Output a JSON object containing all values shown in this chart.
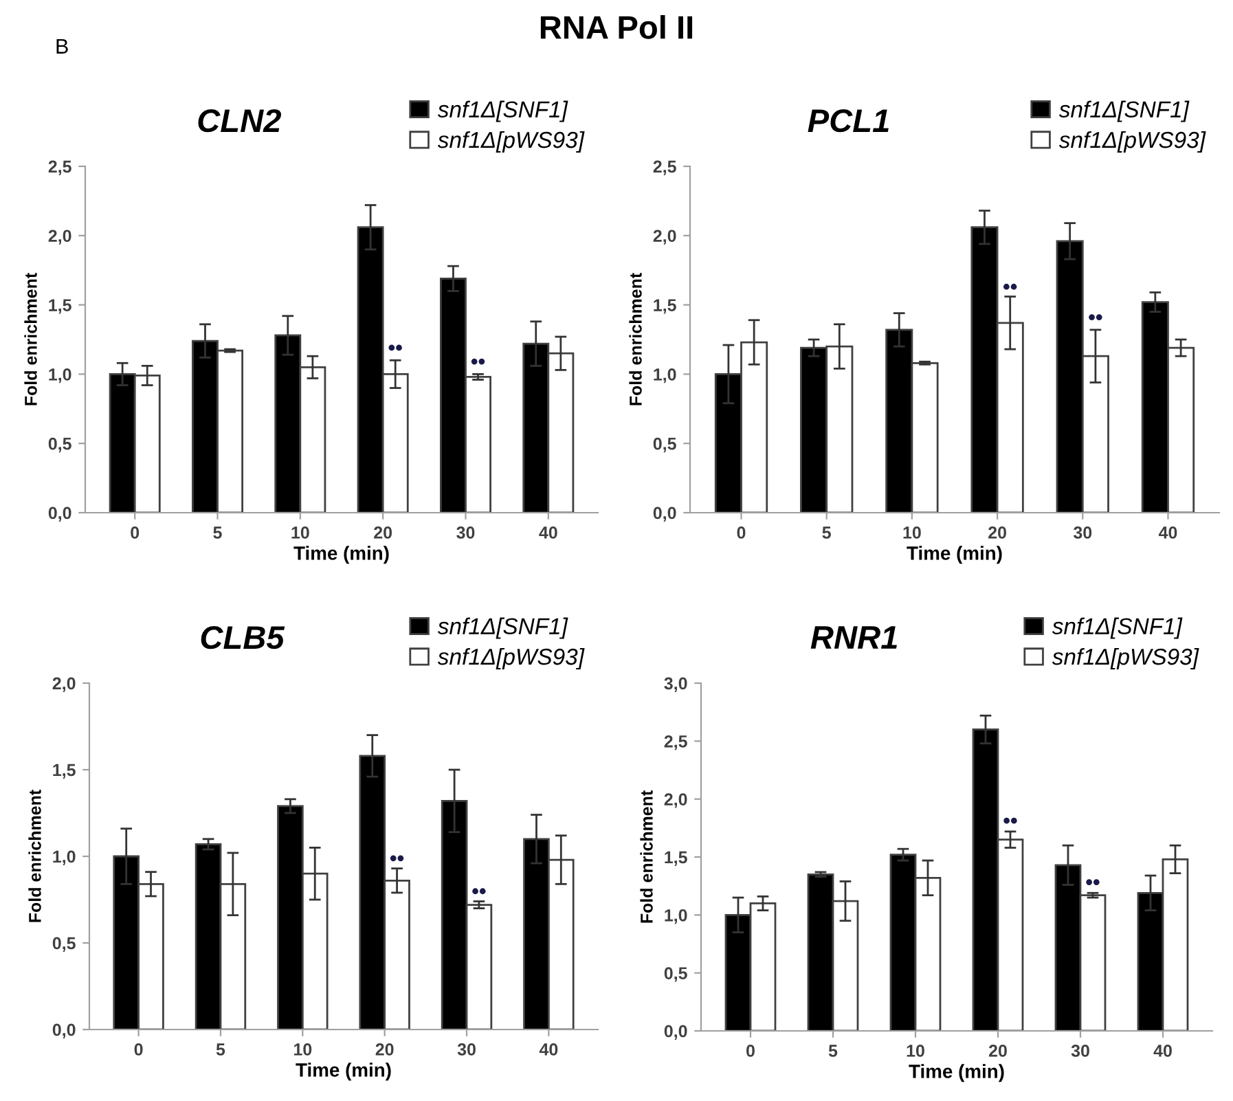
{
  "chart_data": [
    {
      "type": "bar",
      "title": "CLN2",
      "xlabel": "Time (min)",
      "ylabel": "Fold enrichment",
      "categories": [
        "0",
        "5",
        "10",
        "20",
        "30",
        "40"
      ],
      "legend": "top right",
      "grid": false,
      "ylim": [
        0,
        2.5
      ],
      "yticks": [
        {
          "value": 0,
          "label": "0,0"
        },
        {
          "value": 0.5,
          "label": "0,5"
        },
        {
          "value": 1.0,
          "label": "1,0"
        },
        {
          "value": 1.5,
          "label": "1,5"
        },
        {
          "value": 2.0,
          "label": "2,0"
        },
        {
          "value": 2.5,
          "label": "2,5"
        }
      ],
      "series": [
        {
          "name": "snf1Δ[SNF1]",
          "color": "#000000",
          "values": [
            1.0,
            1.24,
            1.28,
            2.06,
            1.69,
            1.22
          ],
          "errors": [
            0.08,
            0.12,
            0.14,
            0.16,
            0.09,
            0.16
          ]
        },
        {
          "name": "snf1Δ[pWS93]",
          "color": "#ffffff",
          "values": [
            0.99,
            1.17,
            1.05,
            1.0,
            0.98,
            1.15
          ],
          "errors": [
            0.07,
            0.01,
            0.08,
            0.1,
            0.02,
            0.12
          ]
        }
      ],
      "annotations": [
        "B",
        "RNA Pol II",
        {
          "text": "••",
          "x": "20",
          "y": 1.18
        },
        {
          "text": "••",
          "x": "30",
          "y": 1.08
        }
      ]
    },
    {
      "type": "bar",
      "title": "PCL1",
      "xlabel": "Time (min)",
      "ylabel": "Fold enrichment",
      "categories": [
        "0",
        "5",
        "10",
        "20",
        "30",
        "40"
      ],
      "legend": "top right",
      "grid": false,
      "ylim": [
        0,
        2.5
      ],
      "yticks": [
        {
          "value": 0,
          "label": "0,0"
        },
        {
          "value": 0.5,
          "label": "0,5"
        },
        {
          "value": 1.0,
          "label": "1,0"
        },
        {
          "value": 1.5,
          "label": "1,5"
        },
        {
          "value": 2.0,
          "label": "2,0"
        },
        {
          "value": 2.5,
          "label": "2,5"
        }
      ],
      "series": [
        {
          "name": "snf1Δ[SNF1]",
          "color": "#000000",
          "values": [
            1.0,
            1.19,
            1.32,
            2.06,
            1.96,
            1.52
          ],
          "errors": [
            0.21,
            0.06,
            0.12,
            0.12,
            0.13,
            0.07
          ]
        },
        {
          "name": "snf1Δ[pWS93]",
          "color": "#ffffff",
          "values": [
            1.23,
            1.2,
            1.08,
            1.37,
            1.13,
            1.19
          ],
          "errors": [
            0.16,
            0.16,
            0.01,
            0.19,
            0.19,
            0.06
          ]
        }
      ],
      "annotations": [
        {
          "text": "••",
          "x": "20",
          "y": 1.62
        },
        {
          "text": "••",
          "x": "30",
          "y": 1.4
        }
      ]
    },
    {
      "type": "bar",
      "title": "CLB5",
      "xlabel": "Time (min)",
      "ylabel": "Fold enrichment",
      "categories": [
        "0",
        "5",
        "10",
        "20",
        "30",
        "40"
      ],
      "legend": "top right",
      "grid": false,
      "ylim": [
        0,
        2.0
      ],
      "yticks": [
        {
          "value": 0,
          "label": "0,0"
        },
        {
          "value": 0.5,
          "label": "0,5"
        },
        {
          "value": 1.0,
          "label": "1,0"
        },
        {
          "value": 1.5,
          "label": "1,5"
        },
        {
          "value": 2.0,
          "label": "2,0"
        }
      ],
      "series": [
        {
          "name": "snf1Δ[SNF1]",
          "color": "#000000",
          "values": [
            1.0,
            1.07,
            1.29,
            1.58,
            1.32,
            1.1
          ],
          "errors": [
            0.16,
            0.03,
            0.04,
            0.12,
            0.18,
            0.14
          ]
        },
        {
          "name": "snf1Δ[pWS93]",
          "color": "#ffffff",
          "values": [
            0.84,
            0.84,
            0.9,
            0.86,
            0.72,
            0.98
          ],
          "errors": [
            0.07,
            0.18,
            0.15,
            0.07,
            0.02,
            0.14
          ]
        }
      ],
      "annotations": [
        {
          "text": "••",
          "x": "20",
          "y": 0.98
        },
        {
          "text": "••",
          "x": "30",
          "y": 0.79
        }
      ]
    },
    {
      "type": "bar",
      "title": "RNR1",
      "xlabel": "Time (min)",
      "ylabel": "Fold enrichment",
      "categories": [
        "0",
        "5",
        "10",
        "20",
        "30",
        "40"
      ],
      "legend": "top right",
      "grid": false,
      "ylim": [
        0,
        3.0
      ],
      "yticks": [
        {
          "value": 0,
          "label": "0,0"
        },
        {
          "value": 0.5,
          "label": "0,5"
        },
        {
          "value": 1.0,
          "label": "1,0"
        },
        {
          "value": 1.5,
          "label": "1,5"
        },
        {
          "value": 2.0,
          "label": "2,0"
        },
        {
          "value": 2.5,
          "label": "2,5"
        },
        {
          "value": 3.0,
          "label": "3,0"
        }
      ],
      "series": [
        {
          "name": "snf1Δ[SNF1]",
          "color": "#000000",
          "values": [
            1.0,
            1.35,
            1.52,
            2.6,
            1.43,
            1.19
          ],
          "errors": [
            0.15,
            0.02,
            0.05,
            0.12,
            0.17,
            0.15
          ]
        },
        {
          "name": "snf1Δ[pWS93]",
          "color": "#ffffff",
          "values": [
            1.1,
            1.12,
            1.32,
            1.65,
            1.17,
            1.48
          ],
          "errors": [
            0.06,
            0.17,
            0.15,
            0.07,
            0.02,
            0.12
          ]
        }
      ],
      "annotations": [
        {
          "text": "••",
          "x": "20",
          "y": 1.8
        },
        {
          "text": "••",
          "x": "30",
          "y": 1.27
        }
      ]
    }
  ]
}
